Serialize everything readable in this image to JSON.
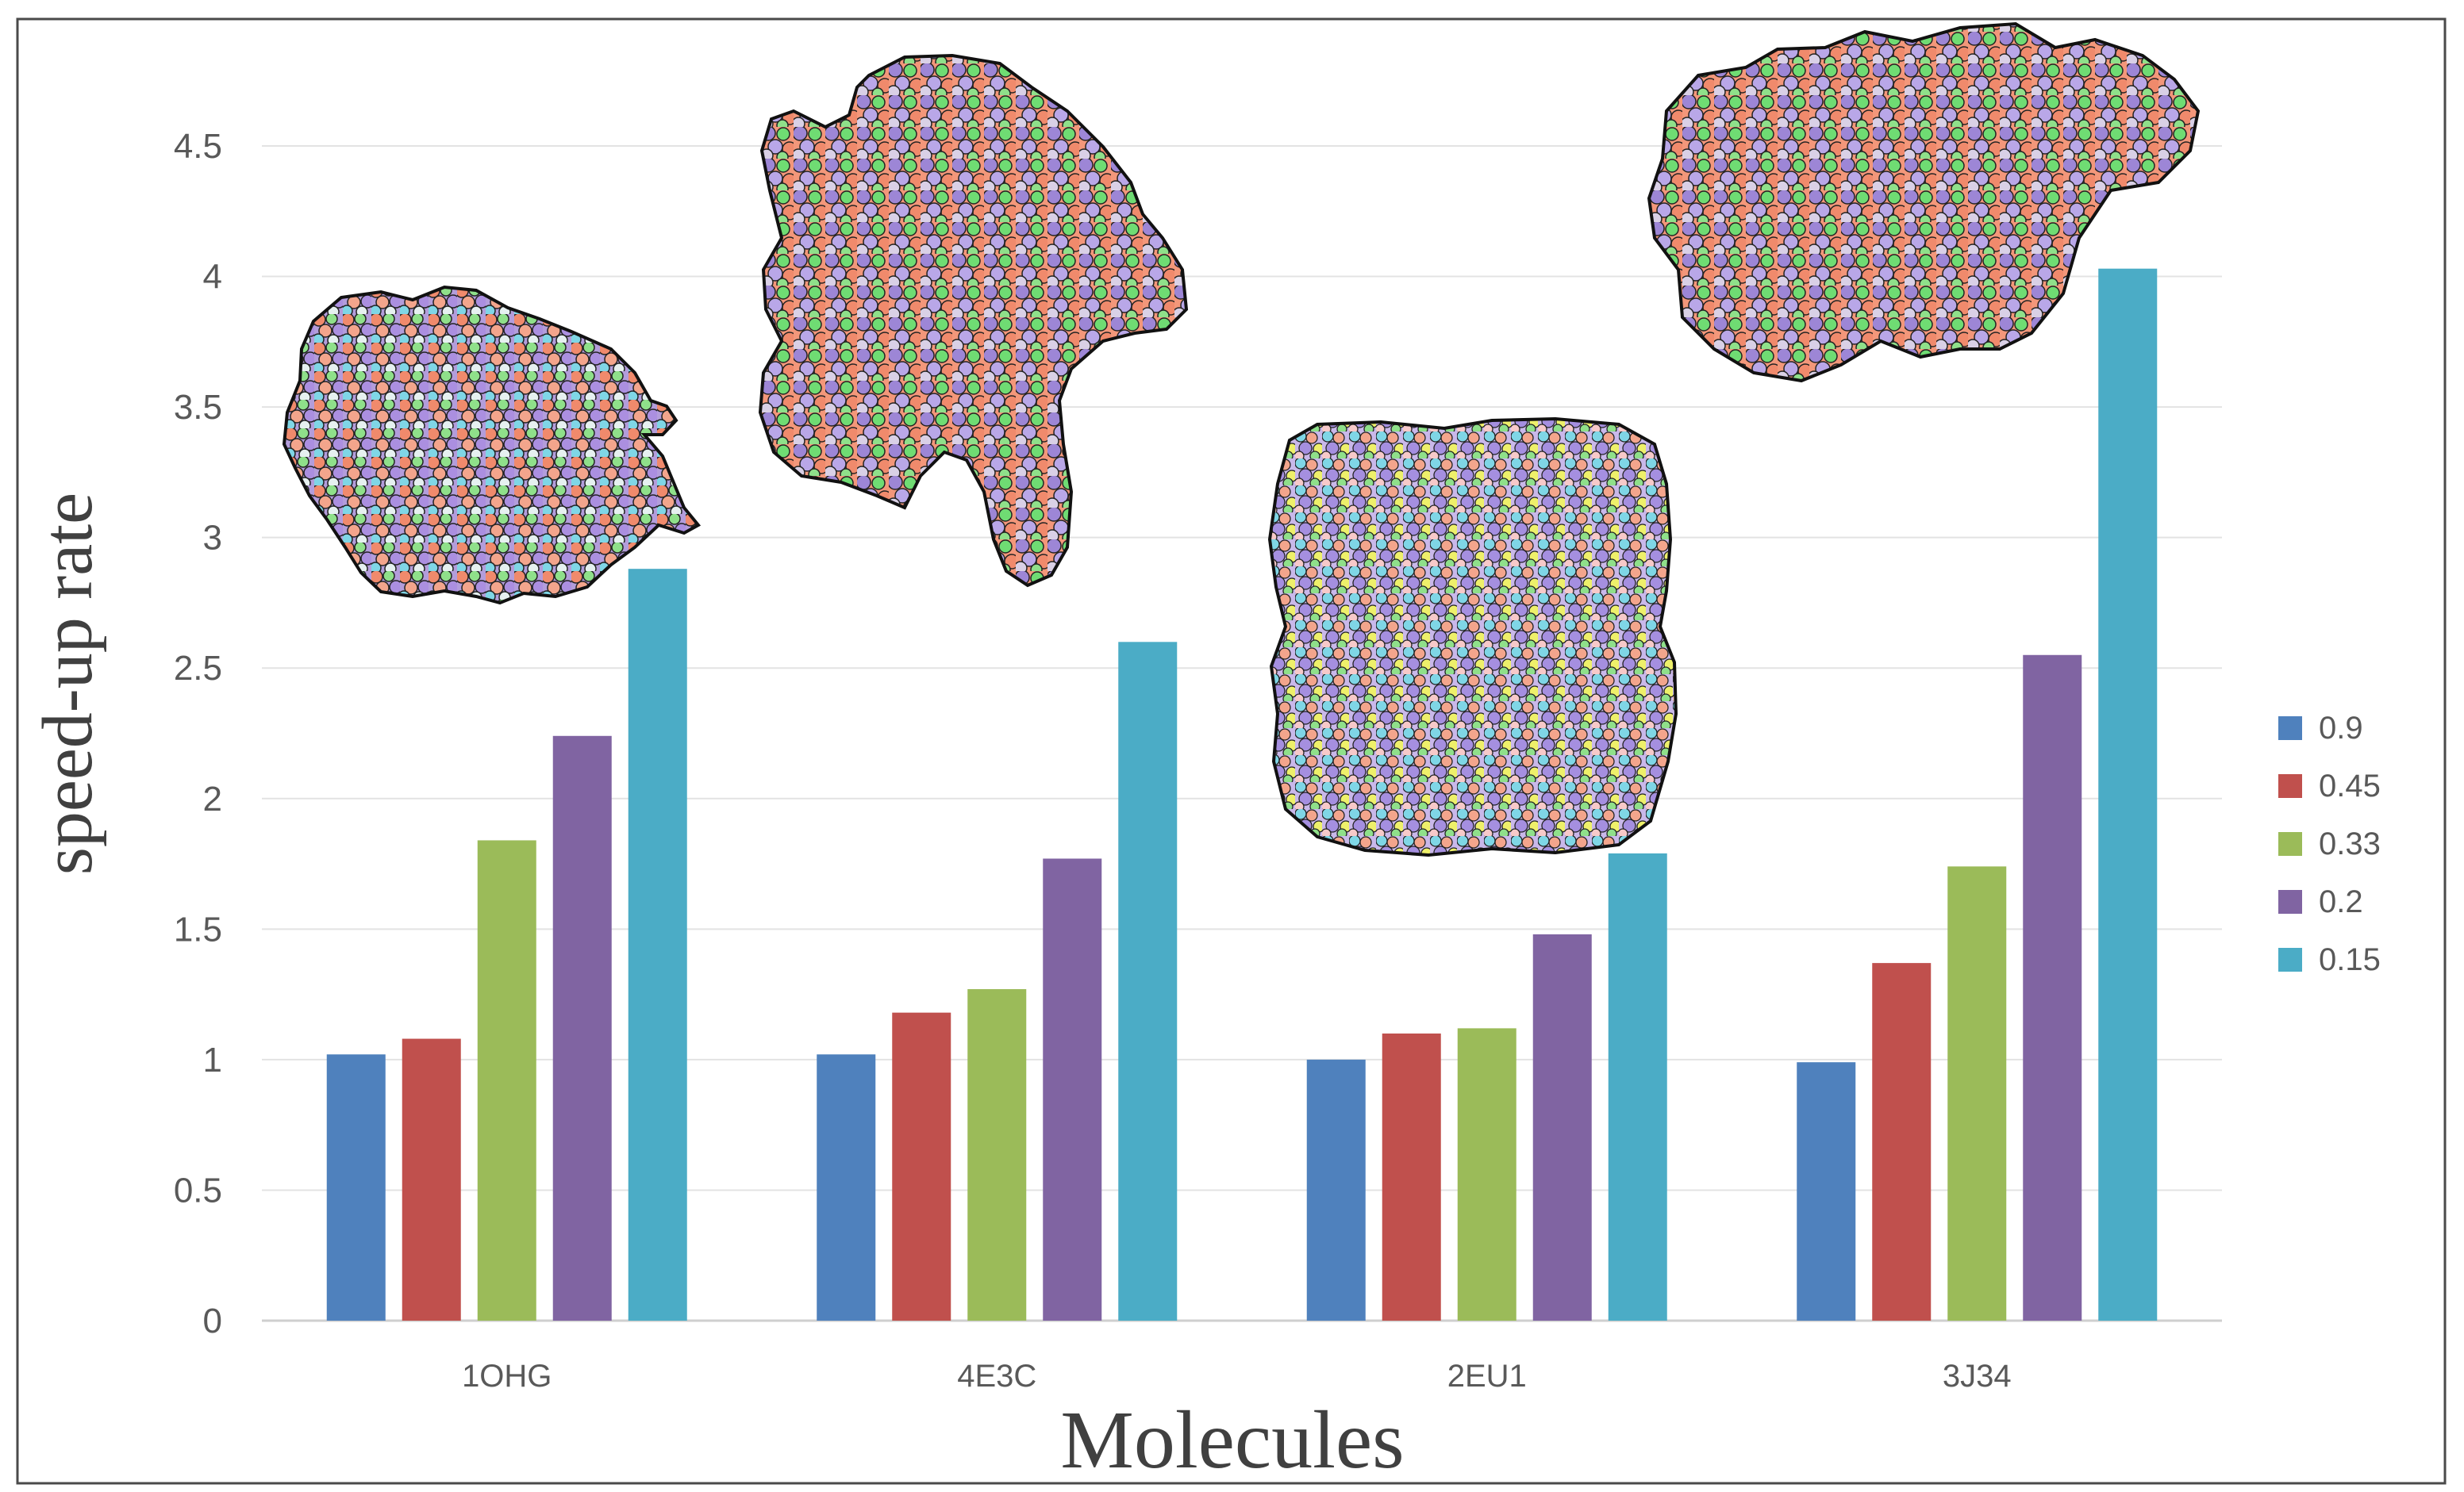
{
  "chart_data": {
    "type": "bar",
    "title": "",
    "xlabel": "Molecules",
    "ylabel": "speed-up rate",
    "categories": [
      "1OHG",
      "4E3C",
      "2EU1",
      "3J34"
    ],
    "series": [
      {
        "name": "0.9",
        "color": "#4F81BD",
        "values": [
          1.02,
          1.02,
          1.0,
          0.99
        ]
      },
      {
        "name": "0.45",
        "color": "#C0504D",
        "values": [
          1.08,
          1.18,
          1.1,
          1.37
        ]
      },
      {
        "name": "0.33",
        "color": "#9BBB59",
        "values": [
          1.84,
          1.27,
          1.12,
          1.74
        ]
      },
      {
        "name": "0.2",
        "color": "#8064A2",
        "values": [
          2.24,
          1.77,
          1.48,
          2.55
        ]
      },
      {
        "name": "0.15",
        "color": "#4BACC6",
        "values": [
          2.88,
          2.6,
          1.79,
          4.03
        ]
      }
    ],
    "ylim": [
      0,
      4.5
    ],
    "yticks": [
      "0",
      "0.5",
      "1",
      "1.5",
      "2",
      "2.5",
      "3",
      "3.5",
      "4",
      "4.5"
    ],
    "grid": true,
    "legend": "right",
    "images": [
      {
        "category": "1OHG",
        "description": "molecule surface rendering"
      },
      {
        "category": "4E3C",
        "description": "molecule surface rendering"
      },
      {
        "category": "2EU1",
        "description": "molecule surface rendering"
      },
      {
        "category": "3J34",
        "description": "molecule surface rendering"
      }
    ]
  }
}
